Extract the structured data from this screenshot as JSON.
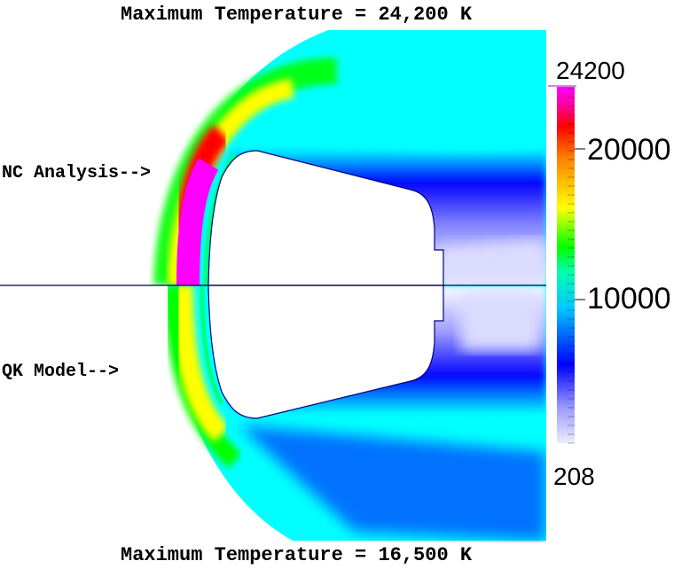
{
  "titles": {
    "top": "Maximum Temperature = 24,200 K",
    "bottom": "Maximum Temperature = 16,500 K"
  },
  "labels": {
    "upper": "NC Analysis-->",
    "lower": "QK Model-->"
  },
  "colorbar": {
    "max_label": "24200",
    "tick_20000": "20000",
    "tick_10000": "10000",
    "min_label": "208",
    "min_value": 208,
    "max_value": 24200,
    "colors": [
      "#e0e0ff",
      "#0000ff",
      "#00ffff",
      "#00ff00",
      "#ffff00",
      "#ff8000",
      "#ff0000",
      "#ff00ff"
    ]
  },
  "colors": {
    "background_flow": "#00ffff",
    "body_outline": "#000080",
    "symmetry_line": "#000040"
  }
}
